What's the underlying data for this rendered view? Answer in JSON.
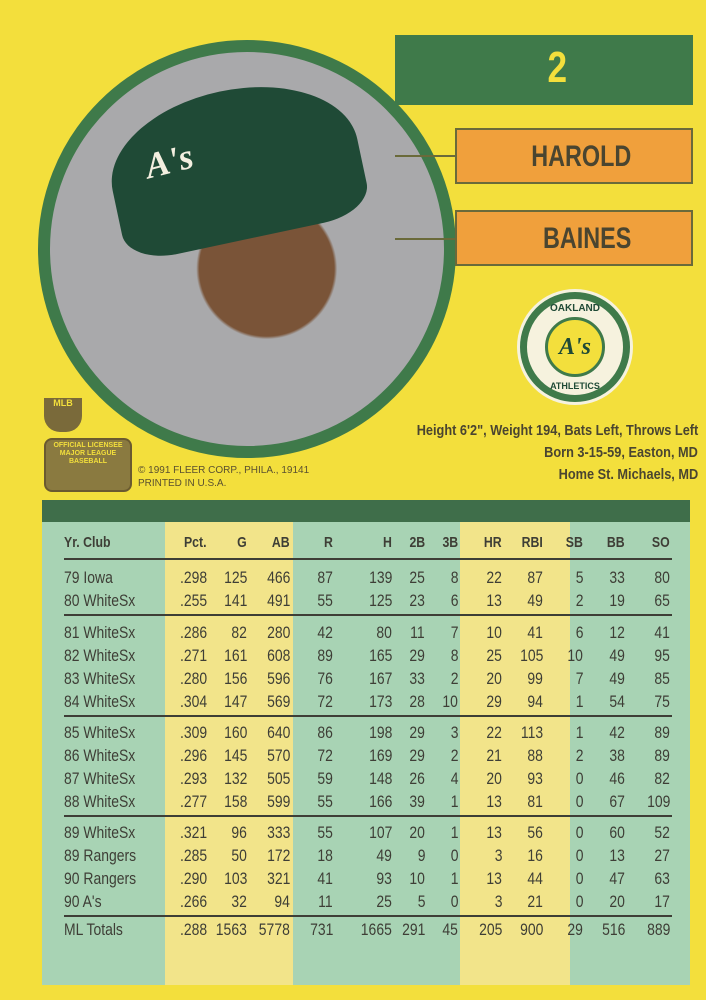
{
  "card": {
    "number": "2",
    "first_name": "HAROLD",
    "last_name": "BAINES",
    "team_logo": {
      "top": "OAKLAND",
      "center": "A's",
      "bottom": "ATHLETICS"
    },
    "cap_logo": "A's",
    "bio": [
      "Height 6'2\", Weight 194, Bats Left, Throws Left",
      "Born 3-15-59, Easton, MD",
      "Home St. Michaels, MD"
    ],
    "copyright": "© 1991 FLEER CORP., PHILA., 19141",
    "printed": "PRINTED IN U.S.A.",
    "mlb_logo": "MLB",
    "licensee": "OFFICIAL LICENSEE MAJOR LEAGUE BASEBALL"
  },
  "colors": {
    "background": "#f3df3c",
    "green": "#3f7a4a",
    "orange": "#f0a03c",
    "teal_stripe": "#a8d3b4",
    "yellow_stripe": "#f2e48a"
  },
  "stats": {
    "headers": [
      "Yr. Club",
      "Pct.",
      "G",
      "AB",
      "R",
      "H",
      "2B",
      "3B",
      "HR",
      "RBI",
      "SB",
      "BB",
      "SO"
    ],
    "rows": [
      [
        "79 Iowa",
        ".298",
        "125",
        "466",
        "87",
        "139",
        "25",
        "8",
        "22",
        "87",
        "5",
        "33",
        "80"
      ],
      [
        "80 WhiteSx",
        ".255",
        "141",
        "491",
        "55",
        "125",
        "23",
        "6",
        "13",
        "49",
        "2",
        "19",
        "65"
      ],
      [
        "81 WhiteSx",
        ".286",
        "82",
        "280",
        "42",
        "80",
        "11",
        "7",
        "10",
        "41",
        "6",
        "12",
        "41"
      ],
      [
        "82 WhiteSx",
        ".271",
        "161",
        "608",
        "89",
        "165",
        "29",
        "8",
        "25",
        "105",
        "10",
        "49",
        "95"
      ],
      [
        "83 WhiteSx",
        ".280",
        "156",
        "596",
        "76",
        "167",
        "33",
        "2",
        "20",
        "99",
        "7",
        "49",
        "85"
      ],
      [
        "84 WhiteSx",
        ".304",
        "147",
        "569",
        "72",
        "173",
        "28",
        "10",
        "29",
        "94",
        "1",
        "54",
        "75"
      ],
      [
        "85 WhiteSx",
        ".309",
        "160",
        "640",
        "86",
        "198",
        "29",
        "3",
        "22",
        "113",
        "1",
        "42",
        "89"
      ],
      [
        "86 WhiteSx",
        ".296",
        "145",
        "570",
        "72",
        "169",
        "29",
        "2",
        "21",
        "88",
        "2",
        "38",
        "89"
      ],
      [
        "87 WhiteSx",
        ".293",
        "132",
        "505",
        "59",
        "148",
        "26",
        "4",
        "20",
        "93",
        "0",
        "46",
        "82"
      ],
      [
        "88 WhiteSx",
        ".277",
        "158",
        "599",
        "55",
        "166",
        "39",
        "1",
        "13",
        "81",
        "0",
        "67",
        "109"
      ],
      [
        "89 WhiteSx",
        ".321",
        "96",
        "333",
        "55",
        "107",
        "20",
        "1",
        "13",
        "56",
        "0",
        "60",
        "52"
      ],
      [
        "89 Rangers",
        ".285",
        "50",
        "172",
        "18",
        "49",
        "9",
        "0",
        "3",
        "16",
        "0",
        "13",
        "27"
      ],
      [
        "90 Rangers",
        ".290",
        "103",
        "321",
        "41",
        "93",
        "10",
        "1",
        "13",
        "44",
        "0",
        "47",
        "63"
      ],
      [
        "90 A's",
        ".266",
        "32",
        "94",
        "11",
        "25",
        "5",
        "0",
        "3",
        "21",
        "0",
        "20",
        "17"
      ]
    ],
    "totals": [
      "ML Totals",
      ".288",
      "1563",
      "5778",
      "731",
      "1665",
      "291",
      "45",
      "205",
      "900",
      "29",
      "516",
      "889"
    ]
  }
}
